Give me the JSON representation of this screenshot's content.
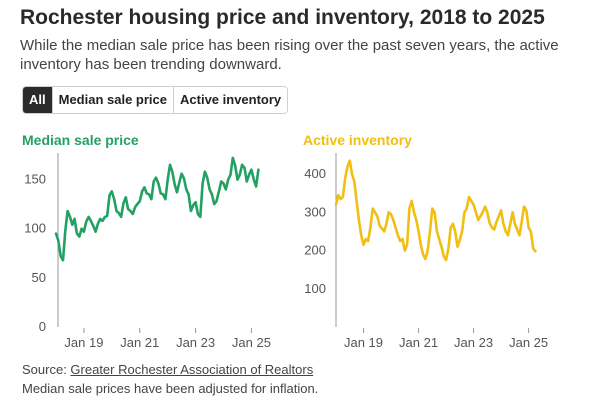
{
  "header": {
    "title": "Rochester housing price and inventory, 2018 to 2025",
    "subtitle": "While the median sale price has been rising over the past seven years, the active inventory has been trending downward."
  },
  "tabs": [
    {
      "label": "All",
      "active": true
    },
    {
      "label": "Median sale price",
      "active": false
    },
    {
      "label": "Active inventory",
      "active": false
    }
  ],
  "footer": {
    "source_prefix": "Source: ",
    "source_link": "Greater Rochester Association of Realtors",
    "note": "Median sale prices have been adjusted for inflation."
  },
  "colors": {
    "price": "#22a163",
    "inventory": "#f1bf12",
    "axis": "#555555"
  },
  "chart_data": [
    {
      "type": "line",
      "title": "Median sale price",
      "ylim": [
        0,
        175
      ],
      "yticks": [
        0,
        50,
        100,
        150
      ],
      "xlim": [
        2018.0,
        2025.45
      ],
      "xticks": [
        {
          "x": 2019.0,
          "label": "Jan 19"
        },
        {
          "x": 2021.0,
          "label": "Jan 21"
        },
        {
          "x": 2023.0,
          "label": "Jan 23"
        },
        {
          "x": 2025.0,
          "label": "Jan 25"
        }
      ],
      "x": [
        2018.0,
        2018.083,
        2018.167,
        2018.25,
        2018.333,
        2018.417,
        2018.5,
        2018.583,
        2018.667,
        2018.75,
        2018.833,
        2018.917,
        2019.0,
        2019.083,
        2019.167,
        2019.25,
        2019.333,
        2019.417,
        2019.5,
        2019.583,
        2019.667,
        2019.75,
        2019.833,
        2019.917,
        2020.0,
        2020.083,
        2020.167,
        2020.25,
        2020.333,
        2020.417,
        2020.5,
        2020.583,
        2020.667,
        2020.75,
        2020.833,
        2020.917,
        2021.0,
        2021.083,
        2021.167,
        2021.25,
        2021.333,
        2021.417,
        2021.5,
        2021.583,
        2021.667,
        2021.75,
        2021.833,
        2021.917,
        2022.0,
        2022.083,
        2022.167,
        2022.25,
        2022.333,
        2022.417,
        2022.5,
        2022.583,
        2022.667,
        2022.75,
        2022.833,
        2022.917,
        2023.0,
        2023.083,
        2023.167,
        2023.25,
        2023.333,
        2023.417,
        2023.5,
        2023.583,
        2023.667,
        2023.75,
        2023.833,
        2023.917,
        2024.0,
        2024.083,
        2024.167,
        2024.25,
        2024.333,
        2024.417,
        2024.5,
        2024.583,
        2024.667,
        2024.75,
        2024.833,
        2024.917,
        2025.0,
        2025.083,
        2025.167,
        2025.25
      ],
      "series": [
        {
          "values": [
            95,
            88,
            72,
            68,
            98,
            118,
            112,
            104,
            110,
            95,
            92,
            100,
            97,
            107,
            112,
            108,
            103,
            97,
            105,
            110,
            108,
            112,
            113,
            134,
            138,
            130,
            118,
            116,
            112,
            126,
            132,
            120,
            118,
            115,
            122,
            125,
            128,
            138,
            142,
            136,
            135,
            130,
            148,
            152,
            146,
            136,
            135,
            130,
            150,
            165,
            158,
            145,
            137,
            147,
            156,
            151,
            140,
            135,
            118,
            124,
            127,
            115,
            112,
            146,
            158,
            152,
            140,
            135,
            125,
            128,
            138,
            148,
            146,
            140,
            150,
            155,
            172,
            164,
            150,
            155,
            165,
            162,
            148,
            155,
            160,
            150,
            143,
            160
          ]
        }
      ]
    },
    {
      "type": "line",
      "title": "Active inventory",
      "ylim": [
        0,
        450
      ],
      "yticks": [
        100,
        200,
        300,
        400
      ],
      "xlim": [
        2018.0,
        2025.45
      ],
      "xticks": [
        {
          "x": 2019.0,
          "label": "Jan 19"
        },
        {
          "x": 2021.0,
          "label": "Jan 21"
        },
        {
          "x": 2023.0,
          "label": "Jan 23"
        },
        {
          "x": 2025.0,
          "label": "Jan 25"
        }
      ],
      "x": [
        2018.0,
        2018.083,
        2018.167,
        2018.25,
        2018.333,
        2018.417,
        2018.5,
        2018.583,
        2018.667,
        2018.75,
        2018.833,
        2018.917,
        2019.0,
        2019.083,
        2019.167,
        2019.25,
        2019.333,
        2019.417,
        2019.5,
        2019.583,
        2019.667,
        2019.75,
        2019.833,
        2019.917,
        2020.0,
        2020.083,
        2020.167,
        2020.25,
        2020.333,
        2020.417,
        2020.5,
        2020.583,
        2020.667,
        2020.75,
        2020.833,
        2020.917,
        2021.0,
        2021.083,
        2021.167,
        2021.25,
        2021.333,
        2021.417,
        2021.5,
        2021.583,
        2021.667,
        2021.75,
        2021.833,
        2021.917,
        2022.0,
        2022.083,
        2022.167,
        2022.25,
        2022.333,
        2022.417,
        2022.5,
        2022.583,
        2022.667,
        2022.75,
        2022.833,
        2022.917,
        2023.0,
        2023.083,
        2023.167,
        2023.25,
        2023.333,
        2023.417,
        2023.5,
        2023.583,
        2023.667,
        2023.75,
        2023.833,
        2023.917,
        2024.0,
        2024.083,
        2024.167,
        2024.25,
        2024.333,
        2024.417,
        2024.5,
        2024.583,
        2024.667,
        2024.75,
        2024.833,
        2024.917,
        2025.0,
        2025.083,
        2025.167,
        2025.25
      ],
      "series": [
        {
          "values": [
            320,
            345,
            335,
            340,
            390,
            420,
            435,
            400,
            380,
            330,
            280,
            240,
            215,
            230,
            225,
            260,
            310,
            300,
            290,
            265,
            258,
            250,
            270,
            300,
            295,
            280,
            260,
            240,
            225,
            230,
            200,
            215,
            310,
            330,
            300,
            280,
            250,
            215,
            190,
            178,
            200,
            250,
            310,
            300,
            250,
            230,
            210,
            185,
            175,
            205,
            260,
            270,
            250,
            210,
            228,
            250,
            300,
            310,
            340,
            330,
            320,
            300,
            280,
            290,
            300,
            315,
            300,
            272,
            260,
            255,
            275,
            290,
            305,
            270,
            250,
            240,
            270,
            300,
            270,
            255,
            240,
            275,
            315,
            305,
            260,
            250,
            205,
            198
          ]
        }
      ]
    }
  ]
}
